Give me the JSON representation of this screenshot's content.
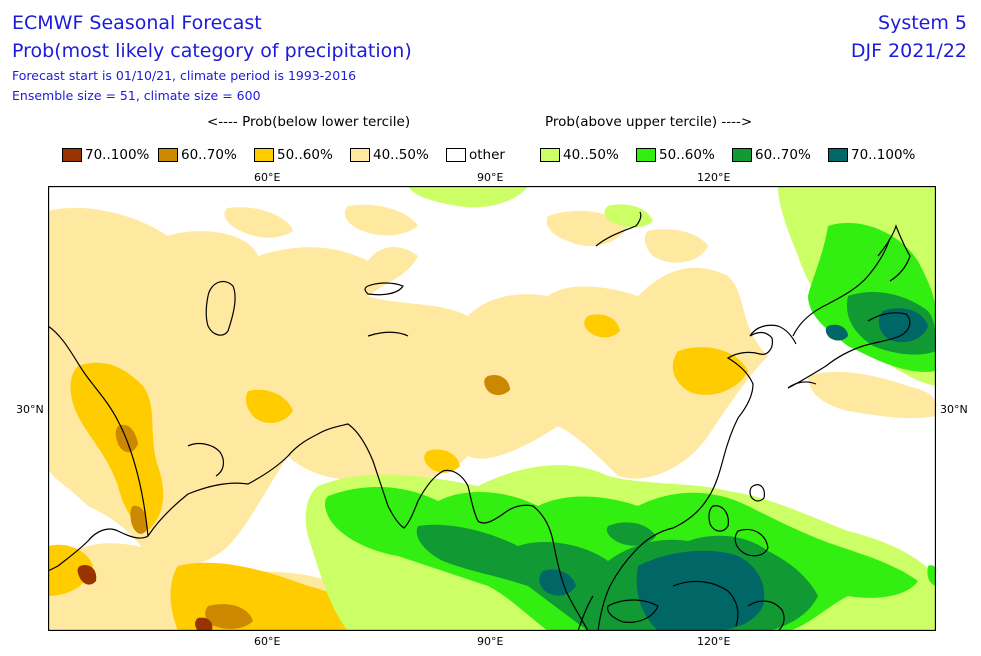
{
  "header": {
    "title": "ECMWF Seasonal Forecast",
    "subtitle": "Prob(most likely category of precipitation)",
    "info1": "Forecast start is 01/10/21, climate period is 1993-2016",
    "info2": "Ensemble size = 51, climate size = 600",
    "system": "System 5",
    "season": "DJF 2021/22"
  },
  "captions": {
    "below": "<---- Prob(below lower tercile)",
    "above": "Prob(above upper tercile) ---->"
  },
  "legend": [
    {
      "label": "70..100%",
      "color": "#993300"
    },
    {
      "label": "60..70%",
      "color": "#cc8800"
    },
    {
      "label": "50..60%",
      "color": "#ffcc00"
    },
    {
      "label": "40..50%",
      "color": "#ffe8a0"
    },
    {
      "label": "other",
      "color": "#ffffff"
    },
    {
      "label": "40..50%",
      "color": "#ccff66"
    },
    {
      "label": "50..60%",
      "color": "#33ee11"
    },
    {
      "label": "60..70%",
      "color": "#119933"
    },
    {
      "label": "70..100%",
      "color": "#006666"
    }
  ],
  "axes": {
    "top_ticks": [
      "60°E",
      "90°E",
      "120°E"
    ],
    "bottom_ticks": [
      "60°E",
      "90°E",
      "120°E"
    ],
    "left_tick": "30°N",
    "right_tick": "30°N"
  }
}
